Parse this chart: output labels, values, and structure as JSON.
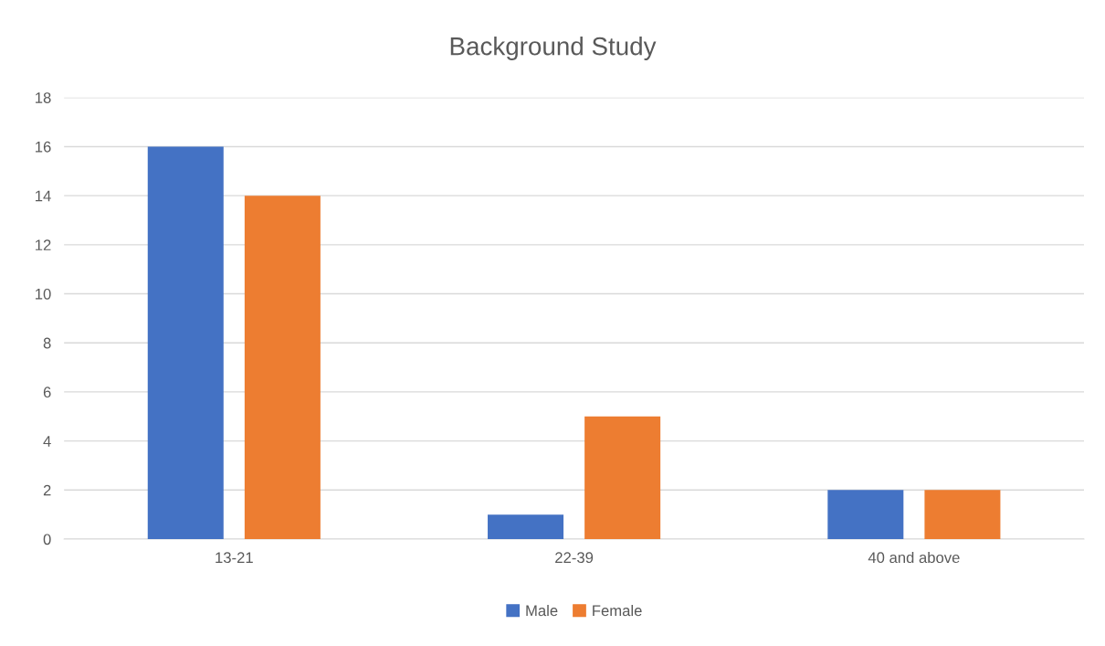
{
  "chart_data": {
    "type": "bar",
    "title": "Background Study",
    "categories": [
      "13-21",
      "22-39",
      "40 and above"
    ],
    "series": [
      {
        "name": "Male",
        "color": "#4472c4",
        "values": [
          16,
          1,
          2
        ]
      },
      {
        "name": "Female",
        "color": "#ed7d31",
        "values": [
          14,
          5,
          2
        ]
      }
    ],
    "ylim": [
      0,
      18
    ],
    "yticks": [
      0,
      2,
      4,
      6,
      8,
      10,
      12,
      14,
      16,
      18
    ],
    "grid": "y",
    "legend": "bottom"
  }
}
